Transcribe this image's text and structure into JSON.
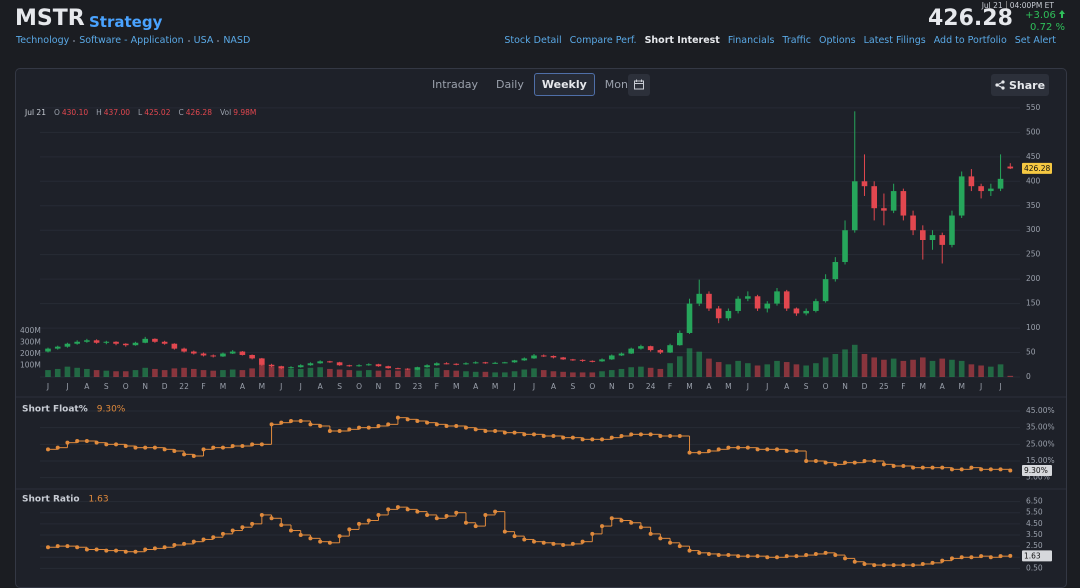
{
  "header": {
    "ticker": "MSTR",
    "company": "Strategy",
    "tags": [
      "Technology",
      "Software - Application",
      "USA",
      "NASD"
    ],
    "date": "Jul 21",
    "time": "04:00PM ET",
    "price": "426.28",
    "change": "+3.06",
    "change_pct": "0.72 %"
  },
  "nav": {
    "items": [
      "Stock Detail",
      "Compare Perf.",
      "Short Interest",
      "Financials",
      "Traffic",
      "Options",
      "Latest Filings",
      "Add to Portfolio",
      "Set Alert"
    ],
    "active": 2
  },
  "toolbar": {
    "ranges": [
      "Intraday",
      "Daily",
      "Weekly",
      "Monthly"
    ],
    "active": 2,
    "share": "Share"
  },
  "legend": {
    "date": "Jul 21",
    "items": [
      {
        "key": "O",
        "value": "430.10"
      },
      {
        "key": "H",
        "value": "437.00"
      },
      {
        "key": "L",
        "value": "425.02"
      },
      {
        "key": "C",
        "value": "426.28"
      },
      {
        "key": "Vol",
        "value": "9.98M"
      }
    ]
  },
  "chart_data": [
    {
      "type": "candlestick",
      "up_color": "#26a65b",
      "down_color": "#e2474f",
      "grid": true,
      "categories": [
        "J",
        null,
        "J",
        null,
        "A",
        null,
        "S",
        null,
        "O",
        null,
        "N",
        null,
        "D",
        null,
        "22",
        null,
        "F",
        null,
        "M",
        null,
        "A",
        null,
        "M",
        null,
        "J",
        null,
        "J",
        null,
        "A",
        null,
        "S",
        null,
        "O",
        null,
        "N",
        null,
        "D",
        null,
        "23",
        null,
        "F",
        null,
        "M",
        null,
        "A",
        null,
        "M",
        null,
        "J",
        null,
        "J",
        null,
        "A",
        null,
        "S",
        null,
        "O",
        null,
        "N",
        null,
        "D",
        null,
        "24",
        null,
        "F",
        null,
        "M",
        null,
        "A",
        null,
        "M",
        null,
        "J",
        null,
        "J",
        null,
        "A",
        null,
        "S",
        null,
        "O",
        null,
        "N",
        null,
        "D",
        null,
        "25",
        null,
        "F",
        null,
        "M",
        null,
        "A",
        null,
        "M",
        null,
        "J",
        null,
        "J",
        null
      ],
      "ohlc": [
        [
          52,
          60,
          50,
          58
        ],
        [
          58,
          64,
          56,
          62
        ],
        [
          62,
          70,
          60,
          68
        ],
        [
          68,
          75,
          66,
          72
        ],
        [
          72,
          78,
          70,
          75
        ],
        [
          75,
          77,
          68,
          70
        ],
        [
          70,
          74,
          67,
          72
        ],
        [
          72,
          73,
          65,
          68
        ],
        [
          68,
          69,
          62,
          65
        ],
        [
          65,
          72,
          64,
          70
        ],
        [
          70,
          82,
          69,
          78
        ],
        [
          78,
          79,
          70,
          72
        ],
        [
          72,
          74,
          66,
          68
        ],
        [
          68,
          69,
          56,
          58
        ],
        [
          58,
          60,
          50,
          52
        ],
        [
          52,
          54,
          46,
          48
        ],
        [
          48,
          50,
          42,
          44
        ],
        [
          44,
          46,
          40,
          42
        ],
        [
          42,
          50,
          41,
          48
        ],
        [
          48,
          55,
          47,
          52
        ],
        [
          52,
          53,
          44,
          45
        ],
        [
          45,
          46,
          36,
          38
        ],
        [
          38,
          39,
          23,
          25
        ],
        [
          25,
          27,
          20,
          22
        ],
        [
          22,
          23,
          16,
          18
        ],
        [
          18,
          22,
          17,
          20
        ],
        [
          20,
          26,
          19,
          24
        ],
        [
          24,
          30,
          23,
          28
        ],
        [
          28,
          34,
          27,
          32
        ],
        [
          32,
          33,
          29,
          30
        ],
        [
          30,
          31,
          23,
          24
        ],
        [
          24,
          25,
          21,
          22
        ],
        [
          22,
          26,
          21,
          24
        ],
        [
          24,
          28,
          23,
          26
        ],
        [
          26,
          27,
          21,
          22
        ],
        [
          22,
          23,
          17,
          18
        ],
        [
          18,
          19,
          16,
          17
        ],
        [
          17,
          18,
          14,
          15
        ],
        [
          15,
          21,
          14,
          20
        ],
        [
          20,
          26,
          19,
          24
        ],
        [
          24,
          30,
          23,
          28
        ],
        [
          28,
          30,
          26,
          27
        ],
        [
          27,
          28,
          24,
          26
        ],
        [
          26,
          30,
          25,
          28
        ],
        [
          28,
          32,
          27,
          30
        ],
        [
          30,
          31,
          27,
          28
        ],
        [
          28,
          31,
          27,
          29
        ],
        [
          29,
          31,
          28,
          30
        ],
        [
          30,
          35,
          29,
          34
        ],
        [
          34,
          40,
          33,
          38
        ],
        [
          38,
          47,
          37,
          44
        ],
        [
          44,
          46,
          41,
          43
        ],
        [
          43,
          44,
          38,
          40
        ],
        [
          40,
          41,
          35,
          36
        ],
        [
          36,
          37,
          33,
          35
        ],
        [
          35,
          36,
          31,
          33
        ],
        [
          33,
          34,
          30,
          32
        ],
        [
          32,
          38,
          31,
          36
        ],
        [
          36,
          46,
          35,
          44
        ],
        [
          44,
          50,
          43,
          48
        ],
        [
          48,
          60,
          47,
          58
        ],
        [
          58,
          66,
          56,
          63
        ],
        [
          63,
          64,
          52,
          55
        ],
        [
          55,
          57,
          47,
          50
        ],
        [
          50,
          68,
          49,
          65
        ],
        [
          65,
          95,
          64,
          90
        ],
        [
          90,
          160,
          88,
          150
        ],
        [
          150,
          199,
          145,
          170
        ],
        [
          170,
          175,
          135,
          140
        ],
        [
          140,
          145,
          110,
          120
        ],
        [
          120,
          140,
          115,
          135
        ],
        [
          135,
          165,
          130,
          160
        ],
        [
          160,
          175,
          155,
          165
        ],
        [
          165,
          168,
          135,
          140
        ],
        [
          140,
          155,
          132,
          150
        ],
        [
          150,
          182,
          146,
          175
        ],
        [
          175,
          178,
          135,
          140
        ],
        [
          140,
          142,
          125,
          130
        ],
        [
          130,
          140,
          126,
          135
        ],
        [
          135,
          160,
          132,
          155
        ],
        [
          155,
          210,
          152,
          200
        ],
        [
          200,
          245,
          195,
          235
        ],
        [
          235,
          320,
          230,
          300
        ],
        [
          300,
          543,
          295,
          400
        ],
        [
          400,
          455,
          370,
          390
        ],
        [
          390,
          400,
          320,
          345
        ],
        [
          345,
          375,
          310,
          340
        ],
        [
          340,
          395,
          335,
          380
        ],
        [
          380,
          385,
          320,
          330
        ],
        [
          330,
          340,
          290,
          300
        ],
        [
          300,
          310,
          240,
          280
        ],
        [
          280,
          300,
          260,
          290
        ],
        [
          290,
          295,
          232,
          270
        ],
        [
          270,
          340,
          265,
          330
        ],
        [
          330,
          420,
          325,
          410
        ],
        [
          410,
          425,
          380,
          390
        ],
        [
          390,
          395,
          365,
          380
        ],
        [
          380,
          395,
          370,
          385
        ],
        [
          385,
          455,
          380,
          405
        ],
        [
          430.1,
          437,
          425.02,
          426.28
        ]
      ],
      "volume": [
        60,
        70,
        90,
        80,
        70,
        60,
        55,
        50,
        50,
        60,
        80,
        70,
        60,
        75,
        80,
        70,
        60,
        55,
        60,
        65,
        60,
        75,
        110,
        90,
        85,
        70,
        70,
        80,
        85,
        70,
        65,
        60,
        55,
        60,
        55,
        60,
        55,
        60,
        70,
        75,
        80,
        60,
        55,
        50,
        45,
        45,
        40,
        40,
        50,
        65,
        75,
        60,
        50,
        45,
        40,
        40,
        40,
        50,
        60,
        70,
        85,
        90,
        80,
        70,
        120,
        180,
        250,
        220,
        160,
        130,
        110,
        140,
        120,
        100,
        110,
        140,
        130,
        110,
        100,
        120,
        170,
        200,
        240,
        280,
        200,
        170,
        150,
        160,
        140,
        150,
        170,
        140,
        160,
        150,
        140,
        110,
        100,
        90,
        110,
        9.98
      ],
      "ylim": [
        0,
        560
      ],
      "yticks": [
        0,
        50,
        100,
        150,
        200,
        250,
        300,
        350,
        400,
        450,
        500,
        550
      ],
      "vlim": [
        0,
        400
      ],
      "vticks": [
        {
          "value": 100,
          "label": "100M"
        },
        {
          "value": 200,
          "label": "200M"
        },
        {
          "value": 300,
          "label": "300M"
        },
        {
          "value": 400,
          "label": "400M"
        }
      ],
      "current": 426.28
    },
    {
      "type": "line",
      "title": "Short Float%",
      "color": "#e08a3c",
      "grid": true,
      "values": [
        22,
        23,
        26,
        27,
        27,
        26,
        25,
        25,
        24,
        23,
        23,
        23,
        22,
        21,
        19,
        18,
        22,
        23,
        23,
        24,
        24,
        25,
        25,
        37,
        38,
        39,
        39,
        37,
        36,
        33,
        33,
        34,
        35,
        35,
        36,
        37,
        41,
        40,
        39,
        38,
        37,
        36,
        36,
        35,
        34,
        33,
        33,
        32,
        32,
        31,
        31,
        30,
        30,
        29,
        29,
        28,
        28,
        28,
        29,
        30,
        31,
        31,
        31,
        30,
        30,
        30,
        20,
        20,
        21,
        22,
        23,
        23,
        23,
        22,
        22,
        22,
        21,
        21,
        15,
        15,
        14,
        13,
        14,
        14,
        15,
        15,
        13,
        12,
        12,
        11,
        11,
        11,
        11,
        10,
        10,
        11,
        10,
        10,
        10,
        9.3
      ],
      "ylim": [
        0,
        48
      ],
      "yticks": [
        {
          "value": 5,
          "label": "5.00%"
        },
        {
          "value": 15,
          "label": "15.00%"
        },
        {
          "value": 25,
          "label": "25.00%"
        },
        {
          "value": 35,
          "label": "35.00%"
        },
        {
          "value": 45,
          "label": "45.00%"
        }
      ],
      "current": {
        "value": 9.3,
        "label": "9.30%"
      }
    },
    {
      "type": "line",
      "title": "Short Ratio",
      "color": "#e08a3c",
      "grid": true,
      "values": [
        2.4,
        2.5,
        2.5,
        2.4,
        2.2,
        2.2,
        2.1,
        2.1,
        2.0,
        2.0,
        2.2,
        2.3,
        2.4,
        2.6,
        2.7,
        2.9,
        3.1,
        3.3,
        3.6,
        3.9,
        4.2,
        4.5,
        5.3,
        5.0,
        4.4,
        3.9,
        3.5,
        3.2,
        2.9,
        2.8,
        3.4,
        4.0,
        4.5,
        4.8,
        5.3,
        5.8,
        6.0,
        5.8,
        5.6,
        5.3,
        5.0,
        5.2,
        5.5,
        4.6,
        4.3,
        5.3,
        5.6,
        3.8,
        3.4,
        3.1,
        2.9,
        2.8,
        2.7,
        2.6,
        2.7,
        2.9,
        3.6,
        4.3,
        5.0,
        4.8,
        4.6,
        4.2,
        3.6,
        3.2,
        2.8,
        2.5,
        2.1,
        1.9,
        1.8,
        1.7,
        1.7,
        1.6,
        1.6,
        1.6,
        1.5,
        1.5,
        1.6,
        1.6,
        1.7,
        1.8,
        1.9,
        1.7,
        1.4,
        1.1,
        0.9,
        0.8,
        0.8,
        0.8,
        0.8,
        0.8,
        0.9,
        1.0,
        1.2,
        1.4,
        1.5,
        1.5,
        1.6,
        1.5,
        1.6,
        1.63
      ],
      "ylim": [
        0,
        7
      ],
      "yticks": [
        {
          "value": 0.5,
          "label": "0.50"
        },
        {
          "value": 1.5,
          "label": "1.50"
        },
        {
          "value": 2.5,
          "label": "2.50"
        },
        {
          "value": 3.5,
          "label": "3.50"
        },
        {
          "value": 4.5,
          "label": "4.50"
        },
        {
          "value": 5.5,
          "label": "5.50"
        },
        {
          "value": 6.5,
          "label": "6.50"
        }
      ],
      "current": 1.63
    }
  ]
}
